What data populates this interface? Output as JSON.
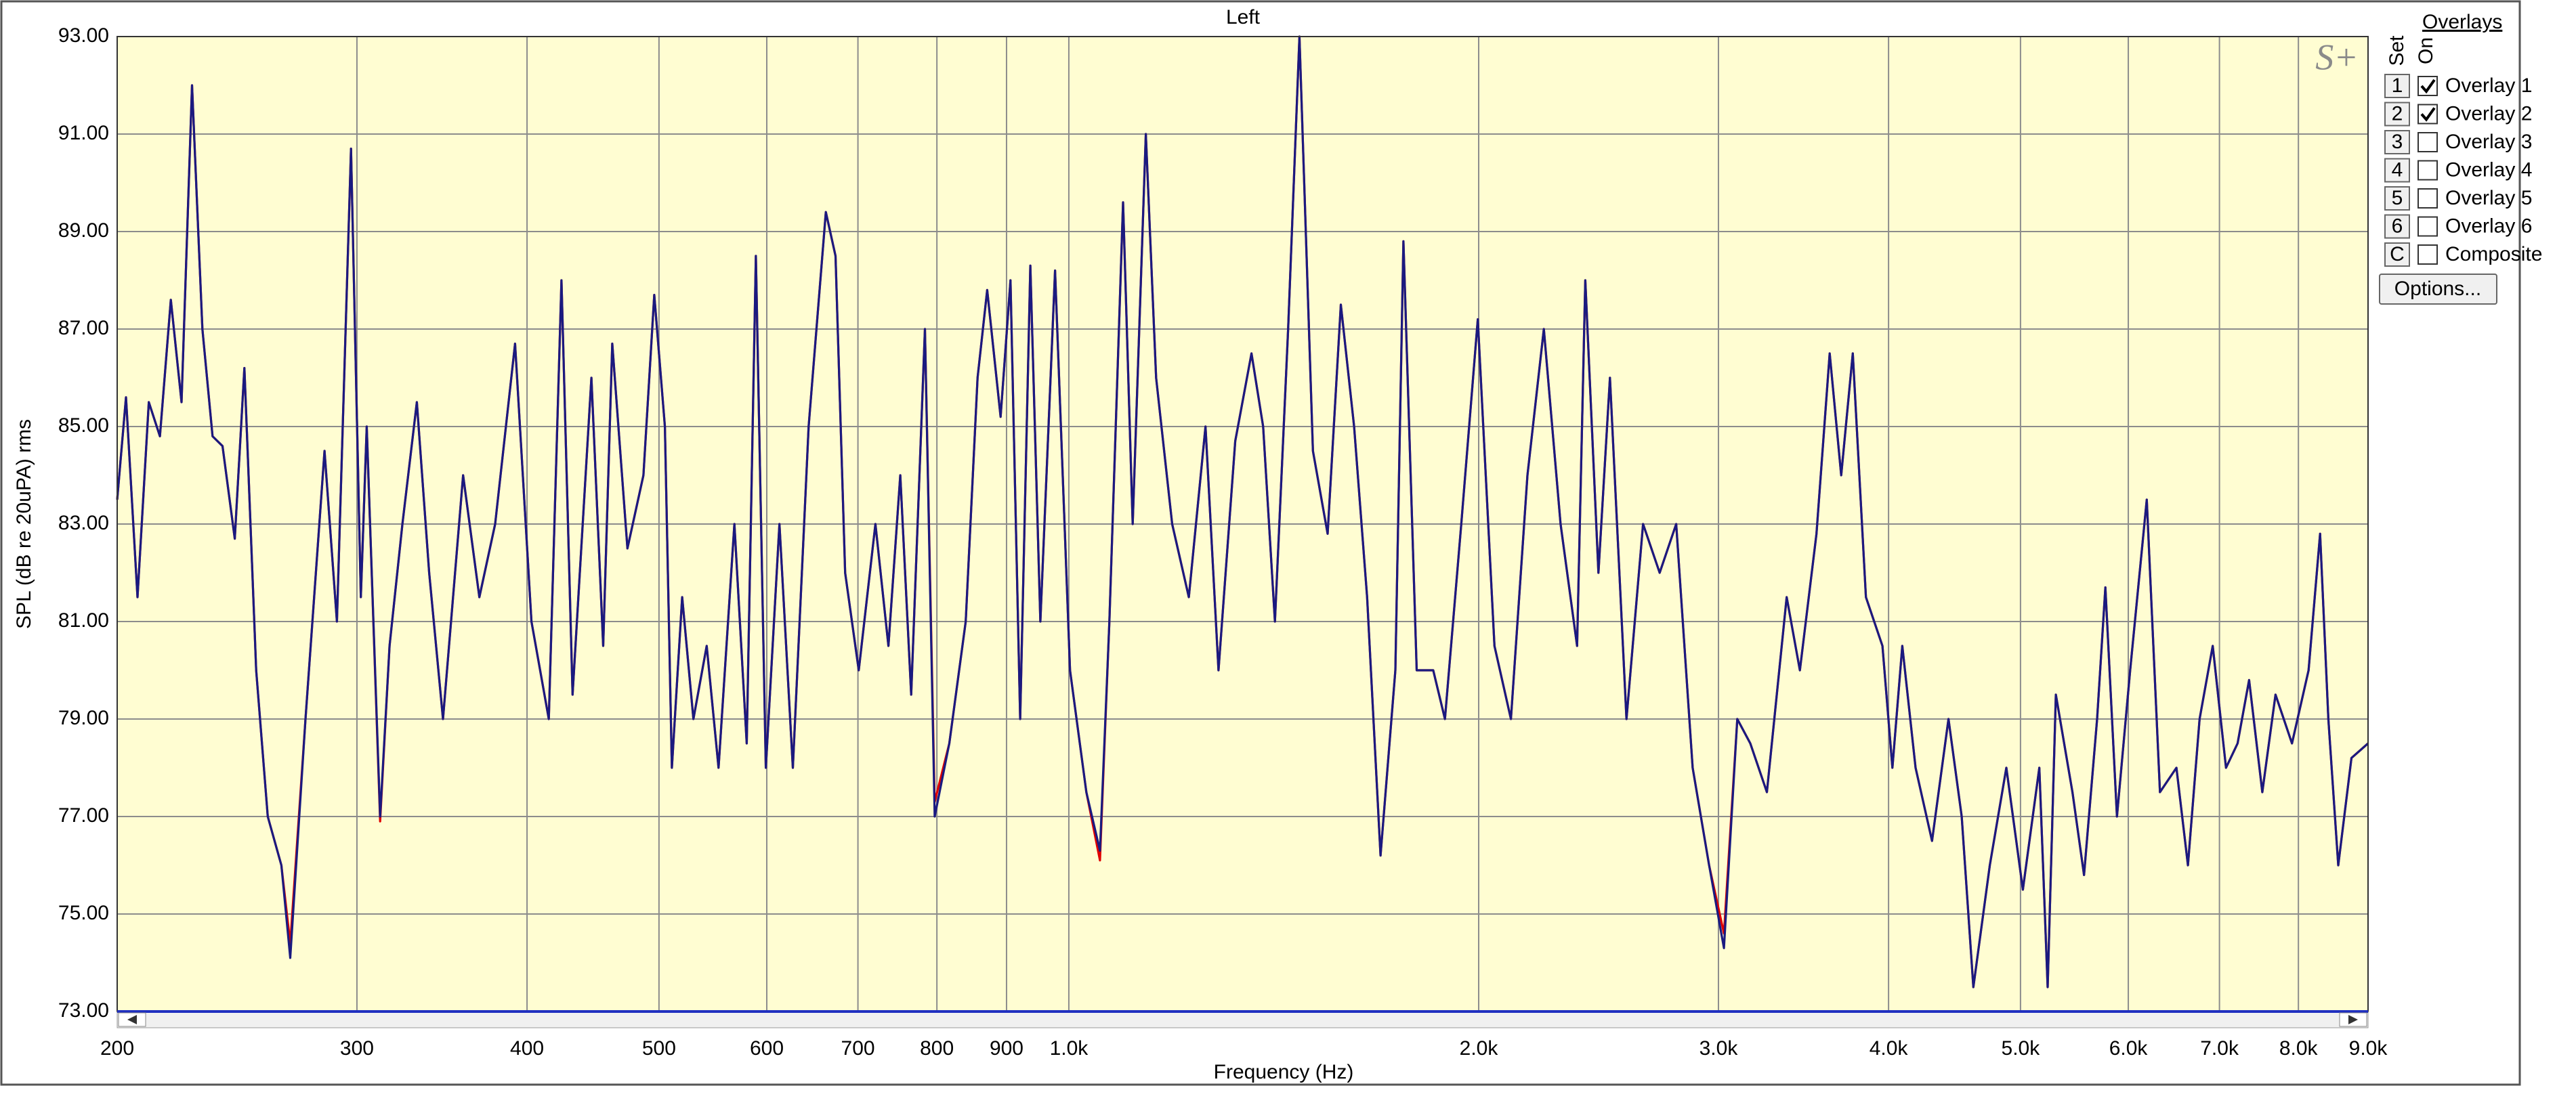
{
  "chart_data": {
    "type": "line",
    "title": "Left",
    "xlabel": "Frequency (Hz)",
    "ylabel": "SPL (dB re 20uPA) rms",
    "xscale": "log",
    "grid": true,
    "xlim": [
      200,
      9000
    ],
    "ylim": [
      73,
      93
    ],
    "xticks": [
      200,
      300,
      400,
      500,
      600,
      700,
      800,
      900,
      {
        "value": 1000,
        "label": "1.0k"
      },
      {
        "value": 2000,
        "label": "2.0k"
      },
      {
        "value": 3000,
        "label": "3.0k"
      },
      {
        "value": 4000,
        "label": "4.0k"
      },
      {
        "value": 5000,
        "label": "5.0k"
      },
      {
        "value": 6000,
        "label": "6.0k"
      },
      {
        "value": 7000,
        "label": "7.0k"
      },
      {
        "value": 8000,
        "label": "8.0k"
      },
      {
        "value": 9000,
        "label": "9.0k"
      }
    ],
    "yticks": [
      {
        "value": 73,
        "label": "73.00"
      },
      {
        "value": 75,
        "label": "75.00"
      },
      {
        "value": 77,
        "label": "77.00"
      },
      {
        "value": 79,
        "label": "79.00"
      },
      {
        "value": 81,
        "label": "81.00"
      },
      {
        "value": 83,
        "label": "83.00"
      },
      {
        "value": 85,
        "label": "85.00"
      },
      {
        "value": 87,
        "label": "87.00"
      },
      {
        "value": 89,
        "label": "89.00"
      },
      {
        "value": 91,
        "label": "91.00"
      },
      {
        "value": 93,
        "label": "93.00"
      }
    ],
    "x": [
      200,
      203,
      207,
      211,
      215,
      219,
      223,
      227,
      231,
      235,
      239,
      244,
      248,
      253,
      258,
      264,
      268,
      275,
      284,
      290,
      297,
      302,
      305,
      312,
      317,
      324,
      332,
      339,
      347,
      359,
      369,
      379,
      392,
      403,
      415,
      424,
      432,
      446,
      455,
      462,
      474,
      487,
      496,
      505,
      511,
      520,
      530,
      542,
      553,
      568,
      580,
      589,
      599,
      613,
      627,
      644,
      663,
      674,
      685,
      701,
      721,
      737,
      752,
      766,
      784,
      797,
      817,
      840,
      857,
      871,
      891,
      906,
      921,
      937,
      953,
      977,
      1002,
      1030,
      1054,
      1071,
      1096,
      1114,
      1139,
      1159,
      1191,
      1225,
      1260,
      1288,
      1325,
      1362,
      1389,
      1417,
      1449,
      1477,
      1511,
      1549,
      1584,
      1620,
      1656,
      1694,
      1737,
      1761,
      1801,
      1852,
      1889,
      1942,
      1997,
      2054,
      2112,
      2172,
      2233,
      2297,
      2362,
      2395,
      2449,
      2497,
      2568,
      2641,
      2716,
      2793,
      2872,
      2953,
      3028,
      3097,
      3166,
      3256,
      3367,
      3443,
      3541,
      3621,
      3692,
      3765,
      3850,
      3959,
      4026,
      4094,
      4187,
      4305,
      4427,
      4527,
      4617,
      4747,
      4882,
      5020,
      5162,
      5235,
      5308,
      5459,
      5567,
      5692,
      5772,
      5886,
      6019,
      6190,
      6330,
      6509,
      6637,
      6769,
      6921,
      7078,
      7218,
      7360,
      7526,
      7696,
      7914,
      8139,
      8299,
      8416,
      8558,
      8751,
      9000
    ],
    "series": [
      {
        "name": "Overlay 1",
        "color": "#e00000",
        "values": [
          83.5,
          85.6,
          81.5,
          85.5,
          84.8,
          87.6,
          85.5,
          92,
          87,
          84.8,
          84.6,
          82.7,
          86.2,
          80,
          77,
          76,
          74.4,
          79,
          84.5,
          81,
          90.7,
          81.5,
          85,
          76.9,
          80.5,
          83,
          85.5,
          82,
          79,
          84,
          81.5,
          83,
          86.7,
          81,
          79,
          88,
          79.5,
          86,
          80.5,
          86.7,
          82.5,
          84,
          87.7,
          85,
          78,
          81.5,
          79,
          80.5,
          78,
          83,
          78.5,
          88.5,
          78,
          83,
          78,
          85,
          89.4,
          88.5,
          82,
          80,
          83,
          80.5,
          84,
          79.5,
          87,
          77.3,
          78.5,
          81,
          86,
          87.8,
          85.2,
          88,
          79,
          88.3,
          81,
          88.2,
          80,
          77.5,
          76.1,
          81,
          89.6,
          83,
          91,
          86,
          83,
          81.5,
          85,
          80,
          84.7,
          86.5,
          85,
          81,
          87,
          93,
          84.5,
          82.8,
          87.5,
          85,
          81.5,
          76.2,
          80,
          88.8,
          80,
          80,
          79,
          83,
          87.2,
          80.5,
          79,
          84,
          87,
          83,
          80.5,
          88,
          82,
          86,
          79,
          83,
          82,
          83,
          78,
          76,
          74.6,
          79,
          78.5,
          77.5,
          81.5,
          80,
          82.8,
          86.5,
          84,
          86.5,
          81.5,
          80.5,
          78,
          80.5,
          78,
          76.5,
          79,
          77,
          73.5,
          76,
          78,
          75.5,
          78,
          73.5,
          79.5,
          77.5,
          75.8,
          79,
          81.7,
          77,
          80,
          83.5,
          77.5,
          78,
          76,
          79,
          80.5,
          78,
          78.5,
          79.8,
          77.5,
          79.5,
          78.5,
          80,
          82.8,
          79,
          76,
          78.2,
          78.5
        ]
      },
      {
        "name": "Overlay 2",
        "color": "#1a1a80",
        "values": [
          83.5,
          85.6,
          81.5,
          85.5,
          84.8,
          87.6,
          85.5,
          92,
          87,
          84.8,
          84.6,
          82.7,
          86.2,
          80,
          77,
          76,
          74.1,
          79,
          84.5,
          81,
          90.7,
          81.5,
          85,
          77,
          80.5,
          83,
          85.5,
          82,
          79,
          84,
          81.5,
          83,
          86.7,
          81,
          79,
          88,
          79.5,
          86,
          80.5,
          86.7,
          82.5,
          84,
          87.7,
          85,
          78,
          81.5,
          79,
          80.5,
          78,
          83,
          78.5,
          88.5,
          78,
          83,
          78,
          85,
          89.4,
          88.5,
          82,
          80,
          83,
          80.5,
          84,
          79.5,
          87,
          77,
          78.5,
          81,
          86,
          87.8,
          85.2,
          88,
          79,
          88.3,
          81,
          88.2,
          80,
          77.5,
          76.3,
          81,
          89.6,
          83,
          91,
          86,
          83,
          81.5,
          85,
          80,
          84.7,
          86.5,
          85,
          81,
          87,
          93,
          84.5,
          82.8,
          87.5,
          85,
          81.5,
          76.2,
          80,
          88.8,
          80,
          80,
          79,
          83,
          87.2,
          80.5,
          79,
          84,
          87,
          83,
          80.5,
          88,
          82,
          86,
          79,
          83,
          82,
          83,
          78,
          76,
          74.3,
          79,
          78.5,
          77.5,
          81.5,
          80,
          82.8,
          86.5,
          84,
          86.5,
          81.5,
          80.5,
          78,
          80.5,
          78,
          76.5,
          79,
          77,
          73.5,
          76,
          78,
          75.5,
          78,
          73.5,
          79.5,
          77.5,
          75.8,
          79,
          81.7,
          77,
          80,
          83.5,
          77.5,
          78,
          76,
          79,
          80.5,
          78,
          78.5,
          79.8,
          77.5,
          79.5,
          78.5,
          80,
          82.8,
          79,
          76,
          78.2,
          78.5
        ]
      }
    ]
  },
  "logo": "S+",
  "panel": {
    "title": "Overlays",
    "set_label": "Set",
    "on_label": "On",
    "options_button": "Options...",
    "rows": [
      {
        "set": "1",
        "on": true
      },
      {
        "set": "2",
        "on": true
      },
      {
        "set": "3",
        "on": false,
        "label": "Overlay 3",
        "color": "#1f9a2a"
      },
      {
        "set": "4",
        "on": false,
        "label": "Overlay 4",
        "color": "#e020e0"
      },
      {
        "set": "5",
        "on": false,
        "label": "Overlay 5",
        "color": "#9a5a1a"
      },
      {
        "set": "6",
        "on": false,
        "label": "Overlay 6",
        "color": "#f08a5a"
      },
      {
        "set": "C",
        "on": false,
        "label": "Composite",
        "color": "#000000"
      }
    ]
  }
}
